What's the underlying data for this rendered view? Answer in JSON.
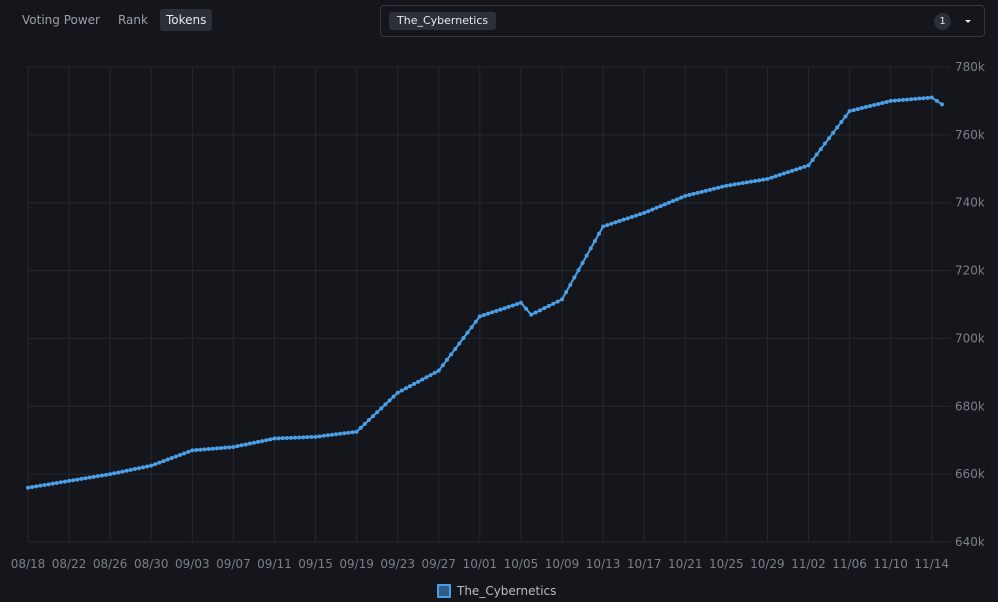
{
  "tabs": [
    {
      "label": "Voting Power",
      "active": false
    },
    {
      "label": "Rank",
      "active": false
    },
    {
      "label": "Tokens",
      "active": true
    }
  ],
  "selector": {
    "selected": "The_Cybernetics",
    "count": "1"
  },
  "colors": {
    "background": "#14161c",
    "line": "#4a9fe6",
    "grid": "#252830",
    "text": "#7a8088"
  },
  "legend": {
    "label": "The_Cybernetics"
  },
  "chart_data": {
    "type": "line",
    "title": "",
    "xlabel": "",
    "ylabel": "",
    "y_axis_side": "right",
    "ylim": [
      640000,
      780000
    ],
    "y_ticks": [
      640000,
      660000,
      680000,
      700000,
      720000,
      740000,
      760000,
      780000
    ],
    "y_tick_labels": [
      "640k",
      "660k",
      "680k",
      "700k",
      "720k",
      "740k",
      "760k",
      "780k"
    ],
    "x_ticks": [
      "08/18",
      "08/22",
      "08/26",
      "08/30",
      "09/03",
      "09/07",
      "09/11",
      "09/15",
      "09/19",
      "09/23",
      "09/27",
      "10/01",
      "10/05",
      "10/09",
      "10/13",
      "10/17",
      "10/21",
      "10/25",
      "10/29",
      "11/02",
      "11/06",
      "11/10",
      "11/14"
    ],
    "grid": true,
    "legend_position": "bottom-center",
    "series": [
      {
        "name": "The_Cybernetics",
        "points": [
          [
            "08/18",
            656000
          ],
          [
            "08/22",
            658000
          ],
          [
            "08/26",
            660000
          ],
          [
            "08/30",
            662500
          ],
          [
            "09/03",
            667000
          ],
          [
            "09/07",
            668000
          ],
          [
            "09/11",
            670500
          ],
          [
            "09/15",
            671000
          ],
          [
            "09/19",
            672500
          ],
          [
            "09/23",
            684000
          ],
          [
            "09/27",
            690500
          ],
          [
            "10/01",
            706500
          ],
          [
            "10/05",
            710500
          ],
          [
            "10/06",
            707000
          ],
          [
            "10/09",
            711500
          ],
          [
            "10/13",
            733000
          ],
          [
            "10/17",
            737000
          ],
          [
            "10/21",
            742000
          ],
          [
            "10/25",
            745000
          ],
          [
            "10/29",
            747000
          ],
          [
            "11/02",
            751000
          ],
          [
            "11/06",
            767000
          ],
          [
            "11/10",
            770000
          ],
          [
            "11/14",
            771000
          ],
          [
            "11/15",
            769000
          ]
        ]
      }
    ]
  }
}
